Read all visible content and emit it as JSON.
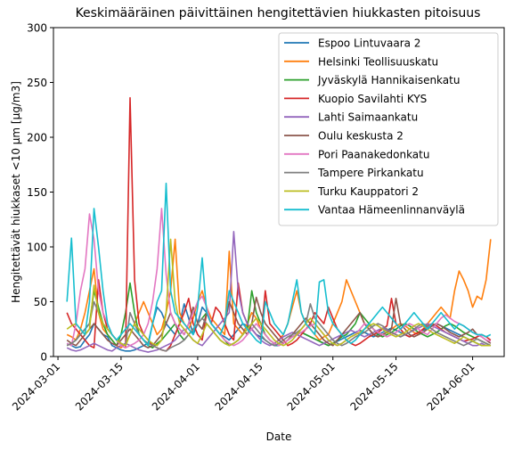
{
  "chart_data": {
    "type": "line",
    "title": "Keskimääräinen päivittäinen hengitettävien hiukkasten pitoisuus",
    "xlabel": "Date",
    "ylabel": "Hengitettävät hiukkaset <10 µm [µg/m3]",
    "ylim": [
      0,
      300
    ],
    "yticks": [
      0,
      50,
      100,
      150,
      200,
      250,
      300
    ],
    "xlim": [
      "2024-02-29",
      "2024-06-08"
    ],
    "xticks": [
      "2024-03-01",
      "2024-03-15",
      "2024-04-01",
      "2024-04-15",
      "2024-05-01",
      "2024-05-15",
      "2024-06-01"
    ],
    "x_start": "2024-03-03",
    "grid": false,
    "legend": "top-right",
    "series": [
      {
        "name": "Espoo Lintuvaara 2",
        "color": "#1f77b4",
        "values": [
          12,
          10,
          8,
          9,
          15,
          20,
          30,
          25,
          20,
          18,
          10,
          8,
          6,
          5,
          5,
          6,
          8,
          10,
          12,
          30,
          45,
          40,
          30,
          25,
          20,
          30,
          48,
          35,
          20,
          30,
          45,
          40,
          30,
          25,
          20,
          18,
          15,
          20,
          25,
          30,
          28,
          25,
          20,
          18,
          15,
          12,
          10,
          10,
          12,
          15,
          18,
          20,
          22,
          20,
          18,
          16,
          14,
          12,
          10,
          12,
          14,
          16,
          18,
          20,
          22,
          24,
          22,
          20,
          18,
          20,
          22,
          24,
          26,
          24,
          22,
          20,
          18,
          20,
          22,
          24,
          26,
          28,
          30,
          28,
          26,
          24,
          22,
          20,
          18,
          16,
          14,
          12,
          10,
          10
        ]
      },
      {
        "name": "Helsinki Teollisuuskatu",
        "color": "#ff7f0e",
        "values": [
          20,
          18,
          15,
          25,
          40,
          60,
          80,
          40,
          25,
          20,
          15,
          10,
          8,
          12,
          20,
          30,
          40,
          50,
          40,
          30,
          20,
          25,
          40,
          60,
          107,
          40,
          30,
          25,
          35,
          50,
          60,
          45,
          35,
          30,
          25,
          20,
          96,
          30,
          25,
          20,
          30,
          40,
          35,
          25,
          20,
          15,
          12,
          15,
          20,
          30,
          45,
          60,
          40,
          30,
          25,
          20,
          15,
          18,
          20,
          30,
          40,
          50,
          70,
          60,
          50,
          40,
          30,
          25,
          20,
          18,
          20,
          22,
          25,
          28,
          30,
          28,
          25,
          22,
          20,
          25,
          30,
          35,
          40,
          45,
          40,
          35,
          60,
          78,
          70,
          60,
          45,
          55,
          52,
          70,
          107
        ]
      },
      {
        "name": "Jyväskylä Hannikaisenkatu",
        "color": "#2ca02c",
        "values": [
          10,
          12,
          15,
          20,
          25,
          30,
          60,
          45,
          30,
          20,
          15,
          10,
          20,
          40,
          67,
          40,
          20,
          15,
          10,
          8,
          12,
          15,
          20,
          25,
          30,
          20,
          15,
          20,
          25,
          30,
          35,
          40,
          30,
          25,
          20,
          15,
          10,
          12,
          15,
          20,
          25,
          60,
          40,
          30,
          20,
          15,
          12,
          10,
          12,
          15,
          18,
          20,
          22,
          20,
          18,
          16,
          14,
          12,
          10,
          12,
          15,
          18,
          20,
          25,
          30,
          40,
          35,
          30,
          25,
          20,
          18,
          20,
          22,
          25,
          28,
          30,
          28,
          25,
          22,
          20,
          18,
          20,
          22,
          25,
          28,
          30,
          28,
          25,
          22,
          20,
          18,
          16,
          14,
          12,
          10
        ]
      },
      {
        "name": "Kuopio Savilahti KYS",
        "color": "#d62728",
        "values": [
          40,
          30,
          25,
          20,
          15,
          10,
          8,
          70,
          40,
          25,
          20,
          15,
          10,
          8,
          236,
          70,
          30,
          20,
          15,
          10,
          8,
          6,
          5,
          10,
          20,
          30,
          40,
          53,
          30,
          20,
          15,
          40,
          30,
          45,
          40,
          30,
          20,
          15,
          67,
          40,
          30,
          25,
          20,
          15,
          60,
          30,
          25,
          20,
          15,
          10,
          12,
          15,
          20,
          25,
          30,
          40,
          35,
          30,
          45,
          35,
          25,
          20,
          15,
          12,
          10,
          12,
          15,
          18,
          20,
          22,
          25,
          28,
          53,
          30,
          25,
          20,
          18,
          20,
          22,
          25,
          28,
          30,
          28,
          25,
          22,
          20,
          18,
          16,
          14,
          15,
          16,
          18,
          20,
          18,
          15
        ]
      },
      {
        "name": "Lahti Saimaankatu",
        "color": "#9467bd",
        "values": [
          8,
          6,
          5,
          6,
          8,
          10,
          12,
          10,
          8,
          6,
          5,
          8,
          10,
          12,
          10,
          8,
          6,
          5,
          4,
          5,
          6,
          8,
          10,
          12,
          15,
          20,
          25,
          20,
          15,
          12,
          10,
          15,
          20,
          25,
          30,
          35,
          40,
          114,
          60,
          40,
          30,
          25,
          20,
          15,
          12,
          10,
          12,
          15,
          18,
          20,
          22,
          20,
          18,
          16,
          14,
          12,
          10,
          12,
          14,
          16,
          18,
          20,
          22,
          24,
          22,
          20,
          18,
          20,
          22,
          24,
          26,
          24,
          22,
          20,
          18,
          20,
          22,
          24,
          26,
          28,
          30,
          28,
          26,
          24,
          22,
          20,
          18,
          16,
          14,
          12,
          10,
          10,
          12,
          10,
          10
        ]
      },
      {
        "name": "Oulu keskusta 2",
        "color": "#8c564b",
        "values": [
          15,
          12,
          10,
          15,
          20,
          25,
          30,
          25,
          20,
          15,
          12,
          10,
          15,
          20,
          25,
          20,
          15,
          10,
          8,
          10,
          15,
          20,
          30,
          40,
          30,
          25,
          20,
          30,
          45,
          30,
          25,
          40,
          30,
          25,
          20,
          30,
          50,
          40,
          30,
          25,
          20,
          30,
          54,
          40,
          30,
          25,
          20,
          15,
          12,
          15,
          20,
          25,
          30,
          35,
          30,
          25,
          20,
          15,
          12,
          10,
          15,
          20,
          25,
          30,
          35,
          40,
          30,
          25,
          20,
          18,
          20,
          22,
          25,
          53,
          30,
          25,
          20,
          18,
          20,
          22,
          25,
          28,
          30,
          28,
          25,
          22,
          20,
          18,
          20,
          22,
          25,
          20,
          18,
          15,
          12
        ]
      },
      {
        "name": "Pori Paanakedonkatu",
        "color": "#e377c2",
        "values": [
          12,
          10,
          30,
          60,
          80,
          130,
          107,
          60,
          40,
          30,
          20,
          15,
          10,
          8,
          10,
          12,
          15,
          20,
          30,
          50,
          80,
          135,
          75,
          40,
          30,
          25,
          20,
          30,
          40,
          50,
          55,
          45,
          30,
          25,
          20,
          15,
          12,
          10,
          12,
          15,
          20,
          25,
          30,
          25,
          20,
          15,
          12,
          10,
          12,
          15,
          18,
          20,
          22,
          25,
          28,
          30,
          25,
          20,
          15,
          12,
          10,
          12,
          15,
          18,
          20,
          25,
          30,
          28,
          25,
          22,
          20,
          18,
          20,
          22,
          25,
          28,
          30,
          28,
          25,
          22,
          20,
          25,
          30,
          35,
          38,
          35,
          32,
          30,
          28,
          25,
          22,
          20,
          18,
          15,
          14
        ]
      },
      {
        "name": "Tampere Pirkankatu",
        "color": "#7f7f7f",
        "values": [
          10,
          12,
          15,
          20,
          25,
          30,
          50,
          40,
          30,
          25,
          20,
          15,
          12,
          10,
          40,
          30,
          20,
          15,
          12,
          10,
          8,
          6,
          5,
          8,
          10,
          12,
          15,
          20,
          25,
          30,
          35,
          30,
          25,
          20,
          15,
          12,
          10,
          12,
          15,
          20,
          25,
          30,
          25,
          20,
          15,
          12,
          10,
          12,
          15,
          18,
          20,
          22,
          25,
          30,
          48,
          35,
          30,
          25,
          20,
          15,
          12,
          10,
          12,
          15,
          18,
          20,
          22,
          25,
          28,
          30,
          28,
          25,
          22,
          20,
          18,
          20,
          22,
          25,
          28,
          30,
          28,
          25,
          22,
          20,
          18,
          16,
          14,
          12,
          10,
          12,
          14,
          16,
          14,
          12,
          10
        ]
      },
      {
        "name": "Turku Kauppatori 2",
        "color": "#bcbd22",
        "values": [
          25,
          28,
          30,
          25,
          20,
          25,
          65,
          40,
          30,
          25,
          20,
          15,
          12,
          10,
          20,
          30,
          25,
          20,
          15,
          12,
          10,
          15,
          40,
          107,
          50,
          30,
          25,
          20,
          15,
          12,
          20,
          30,
          25,
          20,
          15,
          12,
          10,
          12,
          15,
          20,
          25,
          30,
          35,
          30,
          25,
          20,
          15,
          12,
          10,
          12,
          15,
          20,
          25,
          30,
          35,
          30,
          25,
          20,
          15,
          12,
          10,
          12,
          15,
          18,
          20,
          22,
          25,
          28,
          30,
          28,
          25,
          22,
          20,
          18,
          20,
          22,
          25,
          28,
          30,
          28,
          25,
          22,
          20,
          18,
          16,
          14,
          12,
          15,
          18,
          16,
          14,
          12,
          10,
          10,
          10
        ]
      },
      {
        "name": "Vantaa Hämeenlinnanväylä",
        "color": "#17becf",
        "values": [
          50,
          108,
          30,
          25,
          20,
          50,
          135,
          100,
          60,
          30,
          20,
          15,
          20,
          25,
          30,
          25,
          20,
          15,
          10,
          30,
          50,
          60,
          158,
          60,
          40,
          35,
          30,
          25,
          20,
          45,
          90,
          40,
          30,
          25,
          20,
          30,
          60,
          50,
          40,
          30,
          25,
          20,
          15,
          12,
          50,
          40,
          30,
          25,
          20,
          30,
          50,
          70,
          40,
          30,
          25,
          20,
          68,
          70,
          40,
          30,
          25,
          20,
          15,
          12,
          15,
          20,
          25,
          30,
          35,
          40,
          45,
          40,
          35,
          30,
          25,
          30,
          35,
          40,
          35,
          30,
          25,
          30,
          35,
          40,
          35,
          30,
          25,
          30,
          28,
          25,
          22,
          20,
          20,
          18,
          20
        ]
      }
    ]
  }
}
